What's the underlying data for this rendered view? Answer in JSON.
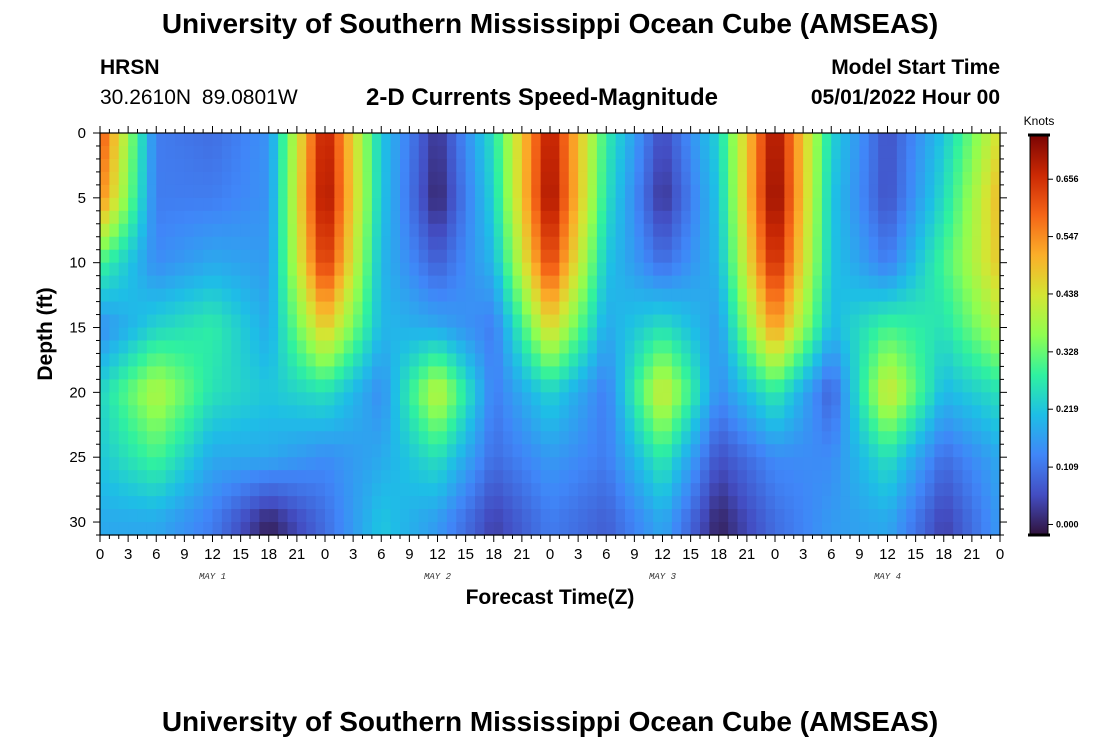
{
  "header": {
    "title": "University of Southern Mississippi Ocean Cube (AMSEAS)",
    "station": "HRSN",
    "coords": "30.2610N 89.0801W",
    "start_label": "Model Start Time",
    "start_value": "05/01/2022 Hour 00"
  },
  "footer": {
    "title": "University of Southern Mississippi Ocean Cube (AMSEAS)"
  },
  "chart_data": {
    "type": "heatmap",
    "title": "2-D Currents Speed-Magnitude",
    "xlabel": "Forecast Time(Z)",
    "ylabel": "Depth (ft)",
    "x_range_hours": [
      0,
      96
    ],
    "x_tick_step_hours": 3,
    "x_tick_labels": [
      "0",
      "3",
      "6",
      "9",
      "12",
      "15",
      "18",
      "21",
      "0",
      "3",
      "6",
      "9",
      "12",
      "15",
      "18",
      "21",
      "0",
      "3",
      "6",
      "9",
      "12",
      "15",
      "18",
      "21",
      "0",
      "3",
      "6",
      "9",
      "12",
      "15",
      "18",
      "21",
      "0"
    ],
    "day_labels": [
      "MAY 1",
      "MAY 2",
      "MAY 3",
      "MAY 4"
    ],
    "day_label_hours": [
      12,
      36,
      60,
      84
    ],
    "y_range_ft": [
      0,
      31
    ],
    "y_ticks": [
      0,
      5,
      10,
      15,
      20,
      25,
      30
    ],
    "y_tick_labels": [
      "0",
      "5",
      "10",
      "15",
      "20",
      "25",
      "30"
    ],
    "colorbar": {
      "unit": "Knots",
      "range": [
        -0.02,
        0.74
      ],
      "tick_values": [
        0.0,
        0.109,
        0.219,
        0.328,
        0.438,
        0.547,
        0.656
      ],
      "tick_labels": [
        "0.000",
        "0.109",
        "0.219",
        "0.328",
        "0.438",
        "0.547",
        "0.656"
      ]
    },
    "time_columns_hours": [
      0,
      6,
      12,
      18,
      24,
      30,
      36,
      42,
      48,
      54,
      60,
      66,
      72,
      78,
      84,
      90,
      96
    ],
    "depth_rows_ft": [
      0,
      5,
      10,
      15,
      20,
      25,
      30
    ],
    "speed_knots": [
      [
        0.62,
        0.12,
        0.1,
        0.15,
        0.7,
        0.22,
        0.02,
        0.26,
        0.7,
        0.28,
        0.05,
        0.24,
        0.72,
        0.24,
        0.06,
        0.22,
        0.45
      ],
      [
        0.56,
        0.12,
        0.12,
        0.15,
        0.72,
        0.22,
        0.0,
        0.24,
        0.72,
        0.26,
        0.02,
        0.22,
        0.74,
        0.22,
        0.06,
        0.25,
        0.5
      ],
      [
        0.3,
        0.14,
        0.18,
        0.16,
        0.66,
        0.2,
        0.08,
        0.2,
        0.64,
        0.22,
        0.1,
        0.2,
        0.68,
        0.22,
        0.12,
        0.3,
        0.48
      ],
      [
        0.14,
        0.24,
        0.28,
        0.18,
        0.48,
        0.2,
        0.18,
        0.12,
        0.46,
        0.18,
        0.26,
        0.16,
        0.54,
        0.2,
        0.3,
        0.26,
        0.4
      ],
      [
        0.24,
        0.4,
        0.26,
        0.22,
        0.26,
        0.14,
        0.42,
        0.12,
        0.24,
        0.12,
        0.44,
        0.14,
        0.28,
        0.08,
        0.44,
        0.2,
        0.26
      ],
      [
        0.22,
        0.3,
        0.18,
        0.18,
        0.14,
        0.18,
        0.26,
        0.1,
        0.16,
        0.12,
        0.28,
        0.06,
        0.14,
        0.14,
        0.26,
        0.1,
        0.18
      ],
      [
        0.18,
        0.18,
        0.12,
        0.0,
        0.1,
        0.22,
        0.16,
        0.04,
        0.12,
        0.08,
        0.18,
        0.0,
        0.1,
        0.16,
        0.18,
        0.04,
        0.16
      ]
    ]
  }
}
